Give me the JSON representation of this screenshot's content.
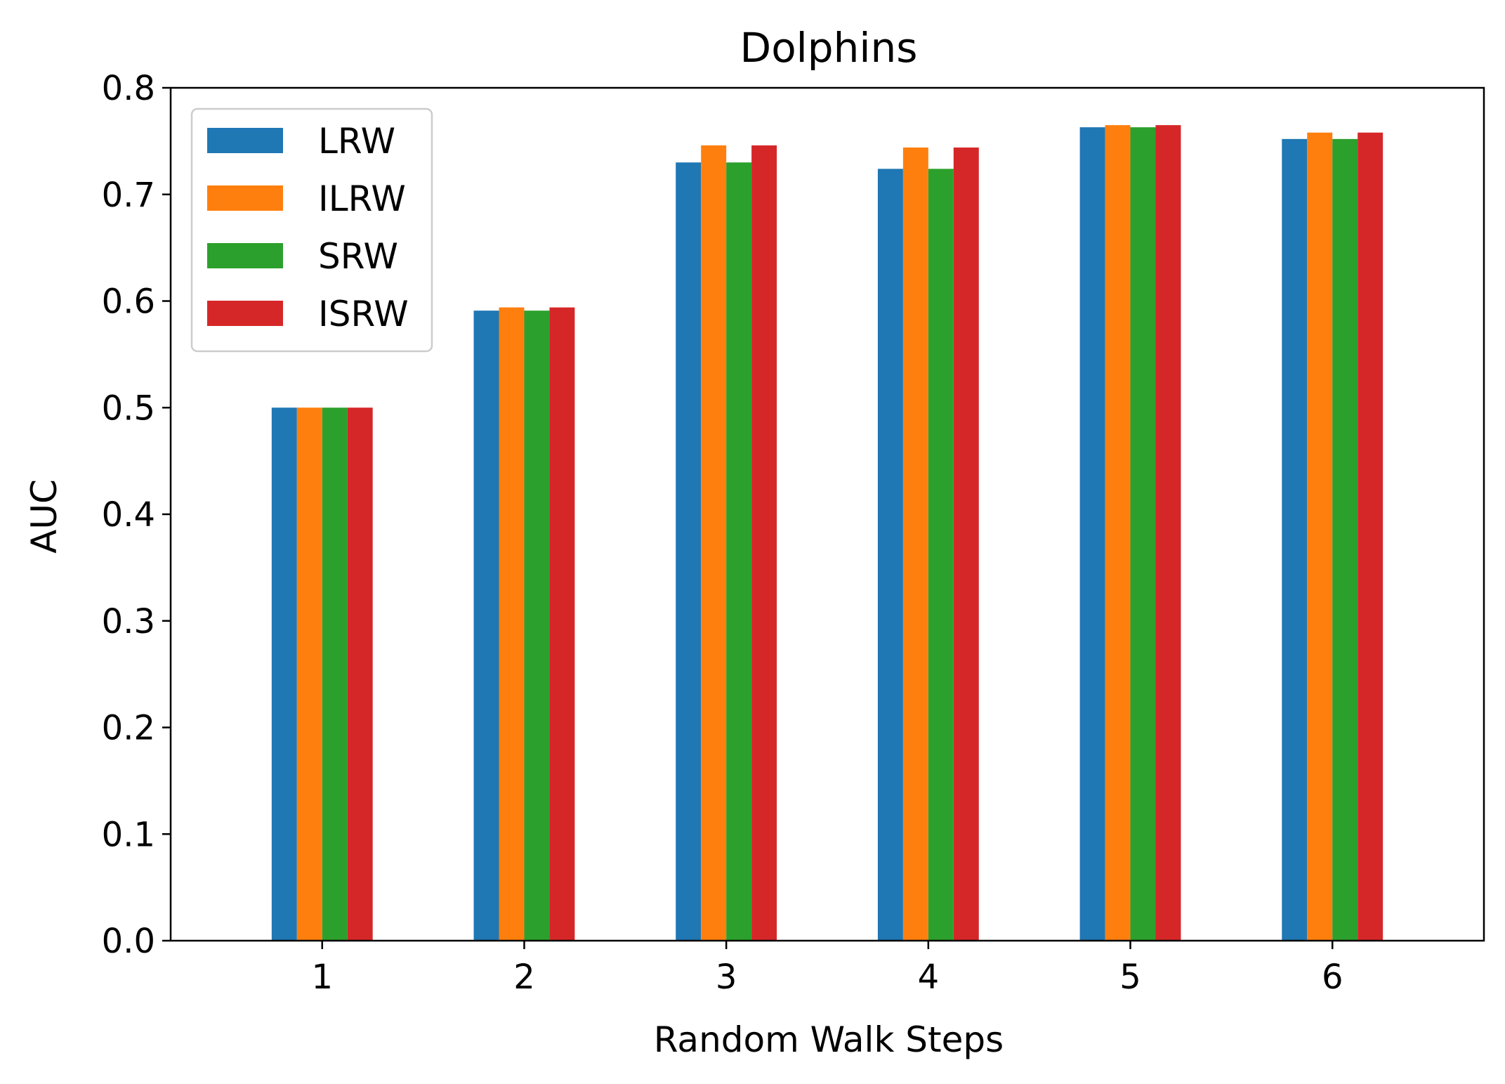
{
  "chart_data": {
    "type": "bar",
    "title": "Dolphins",
    "xlabel": "Random Walk Steps",
    "ylabel": "AUC",
    "categories": [
      "1",
      "2",
      "3",
      "4",
      "5",
      "6"
    ],
    "ylim": [
      0,
      0.8
    ],
    "yticks": [
      "0.0",
      "0.1",
      "0.2",
      "0.3",
      "0.4",
      "0.5",
      "0.6",
      "0.7",
      "0.8"
    ],
    "grid": false,
    "legend_position": "top-left",
    "series": [
      {
        "name": "LRW",
        "color": "#1f77b4",
        "values": [
          0.5,
          0.591,
          0.73,
          0.724,
          0.763,
          0.752
        ]
      },
      {
        "name": "ILRW",
        "color": "#ff7f0e",
        "values": [
          0.5,
          0.594,
          0.746,
          0.744,
          0.765,
          0.758
        ]
      },
      {
        "name": "SRW",
        "color": "#2ca02c",
        "values": [
          0.5,
          0.591,
          0.73,
          0.724,
          0.763,
          0.752
        ]
      },
      {
        "name": "ISRW",
        "color": "#d62728",
        "values": [
          0.5,
          0.594,
          0.746,
          0.744,
          0.765,
          0.758
        ]
      }
    ]
  }
}
